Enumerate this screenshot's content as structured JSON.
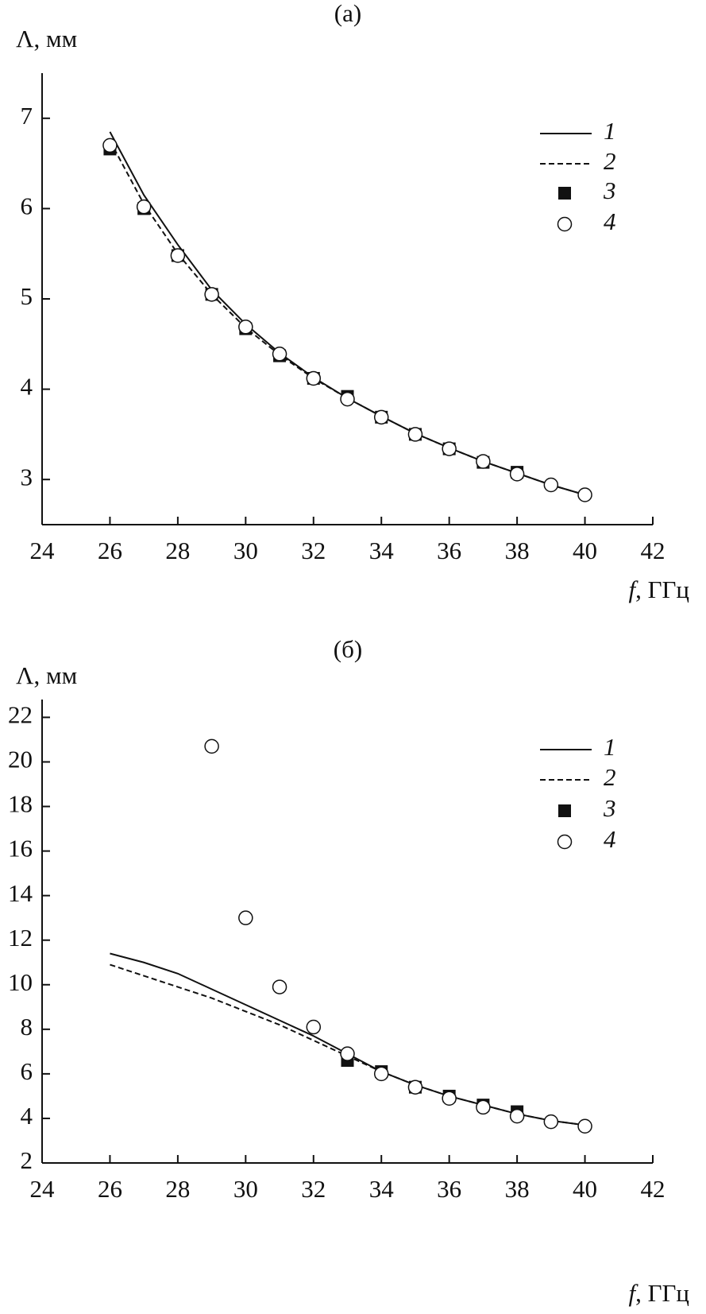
{
  "chart_data": [
    {
      "type": "line",
      "title": "(a)",
      "y_label": "Λ, мм",
      "x_label": "f, ГГц",
      "x": [
        26,
        27,
        28,
        29,
        30,
        31,
        32,
        33,
        34,
        35,
        36,
        37,
        38,
        39,
        40
      ],
      "xlim": [
        24,
        42
      ],
      "xticks": [
        24,
        26,
        28,
        30,
        32,
        34,
        36,
        38,
        40,
        42
      ],
      "ylim": [
        2.5,
        7.5
      ],
      "yticks": [
        3,
        4,
        5,
        6,
        7
      ],
      "series": [
        {
          "name": "1",
          "style": "solid",
          "color": "#111111",
          "values": [
            6.85,
            6.15,
            5.6,
            5.1,
            4.72,
            4.4,
            4.13,
            3.9,
            3.7,
            3.51,
            3.35,
            3.2,
            3.07,
            2.94,
            2.83
          ]
        },
        {
          "name": "2",
          "style": "dashed",
          "color": "#111111",
          "values": [
            6.75,
            6.05,
            5.5,
            5.05,
            4.68,
            4.38,
            4.12,
            3.9,
            3.7,
            3.51,
            3.35,
            3.2,
            3.07,
            2.94,
            2.83
          ]
        },
        {
          "name": "3",
          "style": "square",
          "color": "#111111",
          "values": [
            6.66,
            6.0,
            5.48,
            5.05,
            4.67,
            4.37,
            4.12,
            3.92,
            3.69,
            3.5,
            3.34,
            3.19,
            3.08,
            null,
            null
          ]
        },
        {
          "name": "4",
          "style": "circle",
          "color": "#111111",
          "values": [
            6.7,
            6.02,
            5.48,
            5.05,
            4.69,
            4.39,
            4.12,
            3.89,
            3.69,
            3.5,
            3.34,
            3.2,
            3.06,
            2.94,
            2.83
          ]
        }
      ]
    },
    {
      "type": "line",
      "title": "(б)",
      "y_label": "Λ, мм",
      "x_label": "f, ГГц",
      "x": [
        26,
        27,
        28,
        29,
        30,
        31,
        32,
        33,
        34,
        35,
        36,
        37,
        38,
        39,
        40
      ],
      "xlim": [
        24,
        42
      ],
      "xticks": [
        24,
        26,
        28,
        30,
        32,
        34,
        36,
        38,
        40,
        42
      ],
      "ylim": [
        2,
        22.8
      ],
      "yticks": [
        2,
        4,
        6,
        8,
        10,
        12,
        14,
        16,
        18,
        20,
        22
      ],
      "series": [
        {
          "name": "1",
          "style": "solid",
          "color": "#111111",
          "values": [
            11.4,
            11.0,
            10.5,
            9.8,
            9.1,
            8.4,
            7.7,
            6.9,
            6.1,
            5.5,
            5.0,
            4.6,
            4.2,
            3.9,
            3.7
          ]
        },
        {
          "name": "2",
          "style": "dashed",
          "color": "#111111",
          "values": [
            10.9,
            10.4,
            9.9,
            9.4,
            8.8,
            8.2,
            7.5,
            6.8,
            6.1,
            5.5,
            5.0,
            4.6,
            4.2,
            3.9,
            3.7
          ]
        },
        {
          "name": "3",
          "style": "square",
          "color": "#111111",
          "values": [
            null,
            null,
            null,
            null,
            null,
            null,
            null,
            6.6,
            6.1,
            5.4,
            5.0,
            4.6,
            4.3,
            null,
            null
          ]
        },
        {
          "name": "4",
          "style": "circle",
          "color": "#111111",
          "values": [
            null,
            null,
            null,
            20.7,
            13.0,
            9.9,
            8.1,
            6.9,
            6.0,
            5.4,
            4.9,
            4.5,
            4.1,
            3.85,
            3.65
          ]
        }
      ]
    }
  ]
}
